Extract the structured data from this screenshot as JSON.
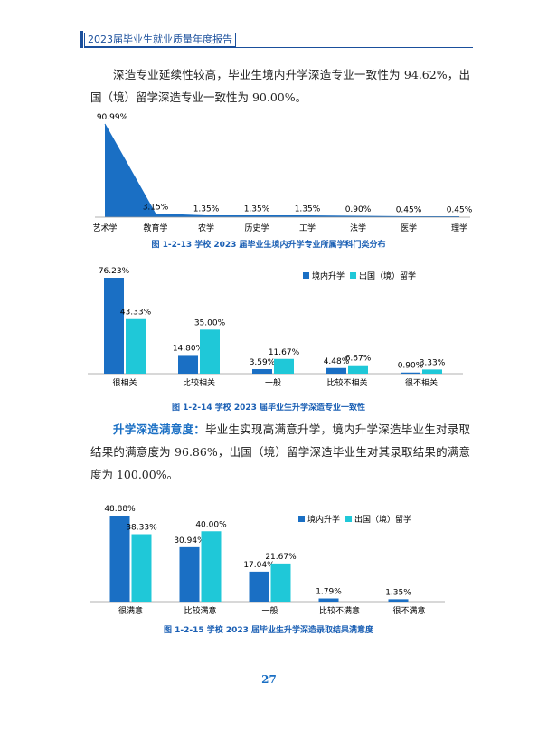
{
  "header": {
    "title": "2023届毕业生就业质量年度报告"
  },
  "paragraph_1": "深造专业延续性较高，毕业生境内升学深造专业一致性为 94.62%，出国（境）留学深造专业一致性为 90.00%。",
  "paragraph_2": {
    "lead": "升学深造满意度：",
    "text": "毕业生实现高满意升学，境内升学深造毕业生对录取结果的满意度为 96.86%，出国（境）留学深造毕业生对其录取结果的满意度为 100.00%。"
  },
  "chart_data": [
    {
      "type": "area",
      "title": "图 1-2-13 学校 2023 届毕业生境内升学专业所属学科门类分布",
      "color": "#1a6fc4",
      "categories": [
        "艺术学",
        "教育学",
        "农学",
        "历史学",
        "工学",
        "法学",
        "医学",
        "理学"
      ],
      "values": [
        90.99,
        3.15,
        1.35,
        1.35,
        1.35,
        0.9,
        0.45,
        0.45
      ],
      "value_labels": [
        "90.99%",
        "3.15%",
        "1.35%",
        "1.35%",
        "1.35%",
        "0.90%",
        "0.45%",
        "0.45%"
      ]
    },
    {
      "type": "bar",
      "title": "图 1-2-14 学校 2023 届毕业生升学深造专业一致性",
      "legend": "top-right",
      "categories": [
        "很相关",
        "比较相关",
        "一般",
        "比较不相关",
        "很不相关"
      ],
      "series": [
        {
          "name": "境内升学",
          "color": "#1a6fc4",
          "values": [
            76.23,
            14.8,
            3.59,
            4.48,
            0.9
          ],
          "value_labels": [
            "76.23%",
            "14.80%",
            "3.59%",
            "4.48%",
            "0.90%"
          ]
        },
        {
          "name": "出国（境）留学",
          "color": "#1fc8d8",
          "values": [
            43.33,
            35.0,
            11.67,
            6.67,
            3.33
          ],
          "value_labels": [
            "43.33%",
            "35.00%",
            "11.67%",
            "6.67%",
            "3.33%"
          ]
        }
      ]
    },
    {
      "type": "bar",
      "title": "图 1-2-15 学校 2023 届毕业生升学深造录取结果满意度",
      "legend": "top-right",
      "categories": [
        "很满意",
        "比较满意",
        "一般",
        "比较不满意",
        "很不满意"
      ],
      "series": [
        {
          "name": "境内升学",
          "color": "#1a6fc4",
          "values": [
            48.88,
            30.94,
            17.04,
            1.79,
            1.35
          ],
          "value_labels": [
            "48.88%",
            "30.94%",
            "17.04%",
            "1.79%",
            "1.35%"
          ]
        },
        {
          "name": "出国（境）留学",
          "color": "#1fc8d8",
          "values": [
            38.33,
            40.0,
            21.67,
            null,
            null
          ],
          "value_labels": [
            "38.33%",
            "40.00%",
            "21.67%",
            null,
            null
          ]
        }
      ]
    }
  ],
  "page_number": "27"
}
